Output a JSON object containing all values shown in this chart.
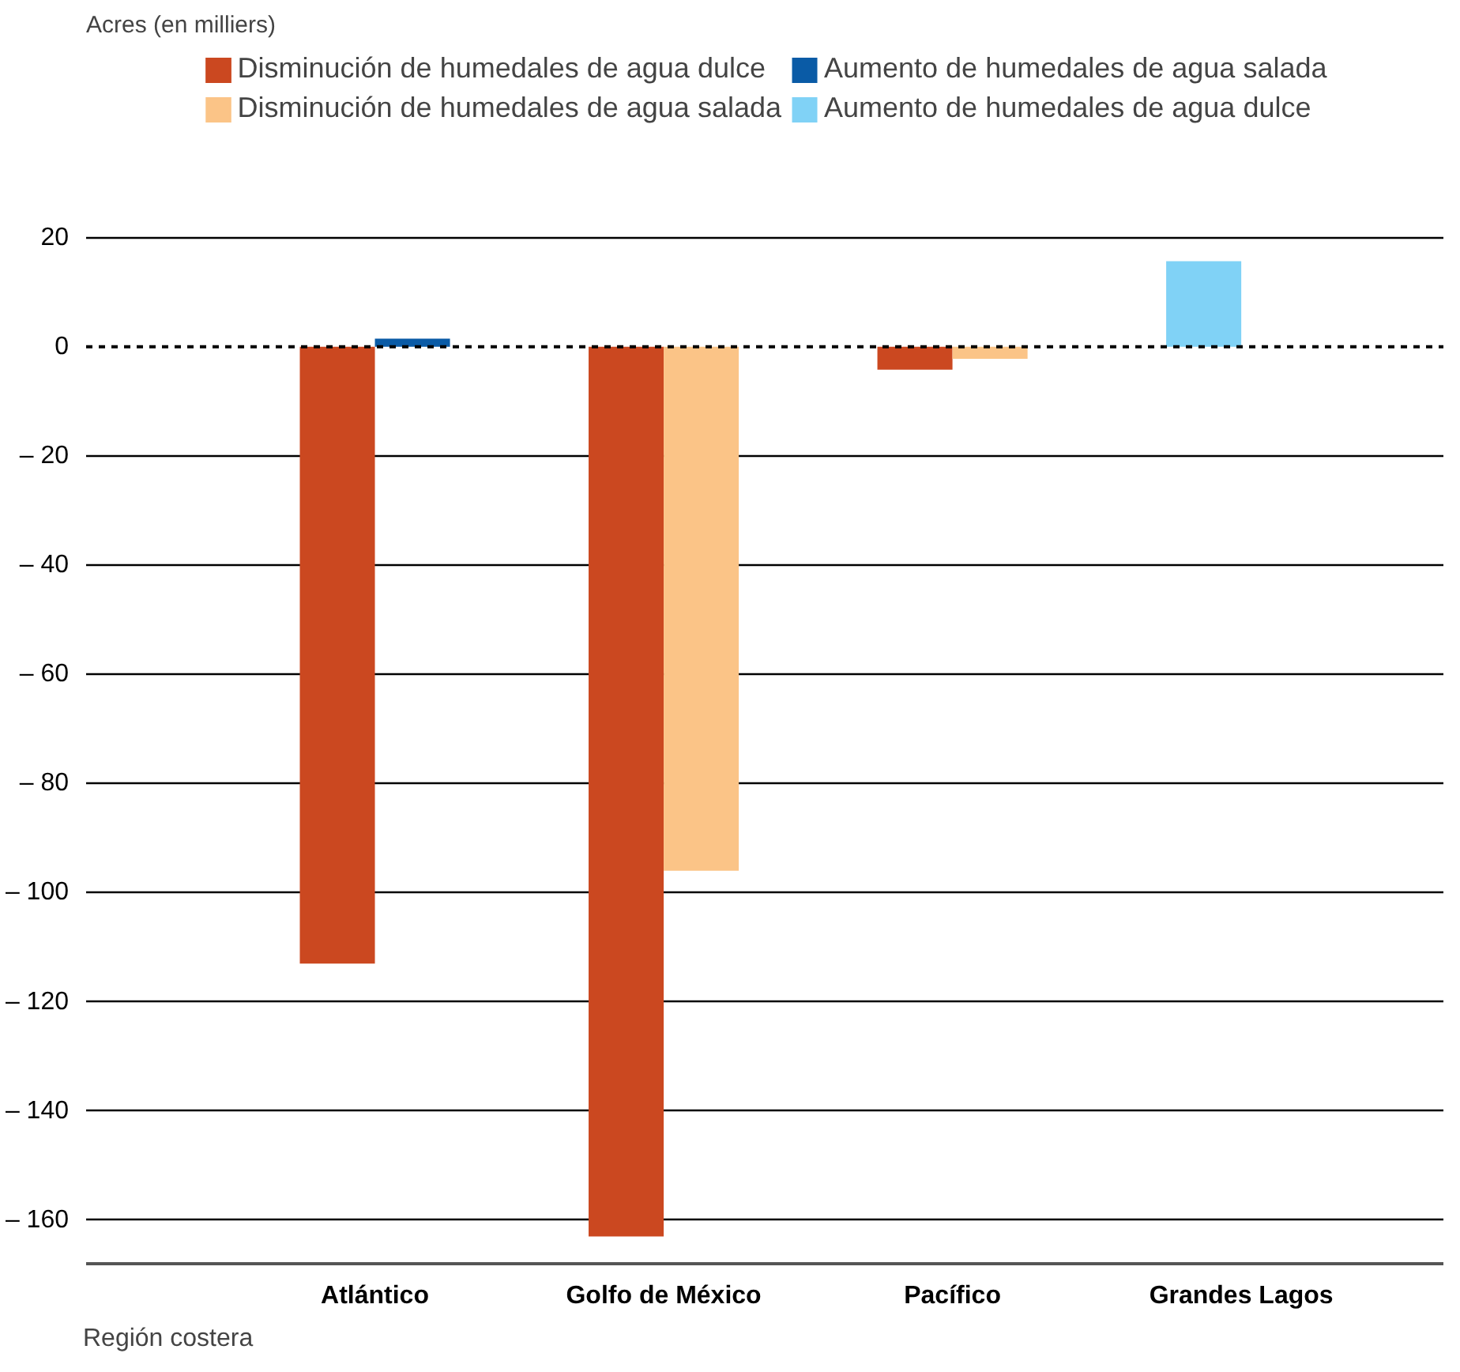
{
  "chart_data": {
    "type": "bar",
    "ylabel": "Acres (en milliers)",
    "xlabel": "Región costera",
    "categories": [
      "Atlántico",
      "Golfo de México",
      "Pacífico",
      "Grandes Lagos"
    ],
    "series": [
      {
        "name": "Disminución de humedales de agua dulce",
        "color": "#cb4820",
        "values": [
          -113,
          -163,
          -4.2,
          null
        ]
      },
      {
        "name": "Aumento de humedales de agua salada",
        "color": "#0a5ba6",
        "values": [
          1.5,
          null,
          null,
          null
        ]
      },
      {
        "name": "Disminución de humedales de agua salada",
        "color": "#fbc487",
        "values": [
          null,
          -96,
          -2.2,
          null
        ]
      },
      {
        "name": "Aumento de humedales de agua dulce",
        "color": "#80d2f6",
        "values": [
          null,
          null,
          null,
          15.7
        ]
      }
    ],
    "ylim": [
      -168,
      55
    ],
    "yticks": [
      20,
      0,
      {
        "value": -20,
        "label": "– 20"
      },
      {
        "value": -40,
        "label": "– 40"
      },
      {
        "value": -60,
        "label": "– 60"
      },
      {
        "value": -80,
        "label": "– 80"
      },
      {
        "value": -100,
        "label": "– 100"
      },
      {
        "value": -120,
        "label": "– 120"
      },
      {
        "value": -140,
        "label": "– 140"
      },
      {
        "value": -160,
        "label": "– 160"
      }
    ],
    "grid": "y",
    "legend": "top",
    "ref_lines": [
      {
        "axis": "y",
        "value": 0,
        "color": "#000000",
        "line_style": "dashed"
      }
    ]
  }
}
